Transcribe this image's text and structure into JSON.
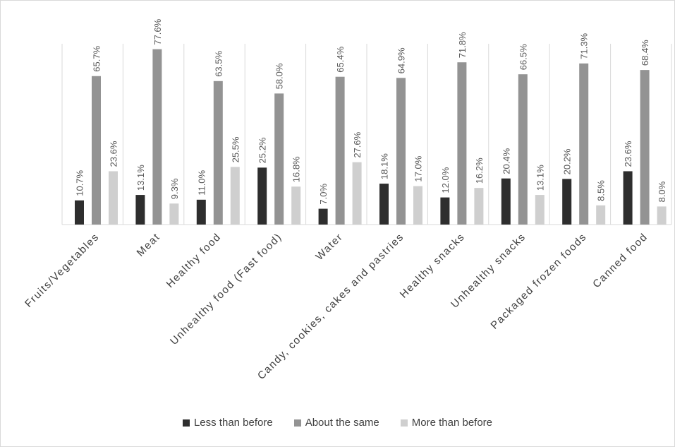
{
  "chart_data": {
    "type": "bar",
    "categories": [
      "Fruits/Vegetables",
      "Meat",
      "Healthy food",
      "Unhealthy food (Fast food)",
      "Water",
      "Candy, cookies, cakes and pastries",
      "Healthy snacks",
      "Unhealthy snacks",
      "Packaged frozen foods",
      "Canned food"
    ],
    "series": [
      {
        "name": "Less than before",
        "color": "#2e2e2e",
        "values": [
          10.7,
          13.1,
          11.0,
          25.2,
          7.0,
          18.1,
          12.0,
          20.4,
          20.2,
          23.6
        ]
      },
      {
        "name": "About the same",
        "color": "#939393",
        "values": [
          65.7,
          77.6,
          63.5,
          58.0,
          65.4,
          64.9,
          71.8,
          66.5,
          71.3,
          68.4
        ]
      },
      {
        "name": "More than before",
        "color": "#cfcfcf",
        "values": [
          23.6,
          9.3,
          25.5,
          16.8,
          27.6,
          17.0,
          16.2,
          13.1,
          8.5,
          8.0
        ]
      }
    ],
    "value_suffix": "%",
    "ylim": [
      0,
      100
    ],
    "grid": "vertical separators",
    "legend_position": "bottom"
  }
}
